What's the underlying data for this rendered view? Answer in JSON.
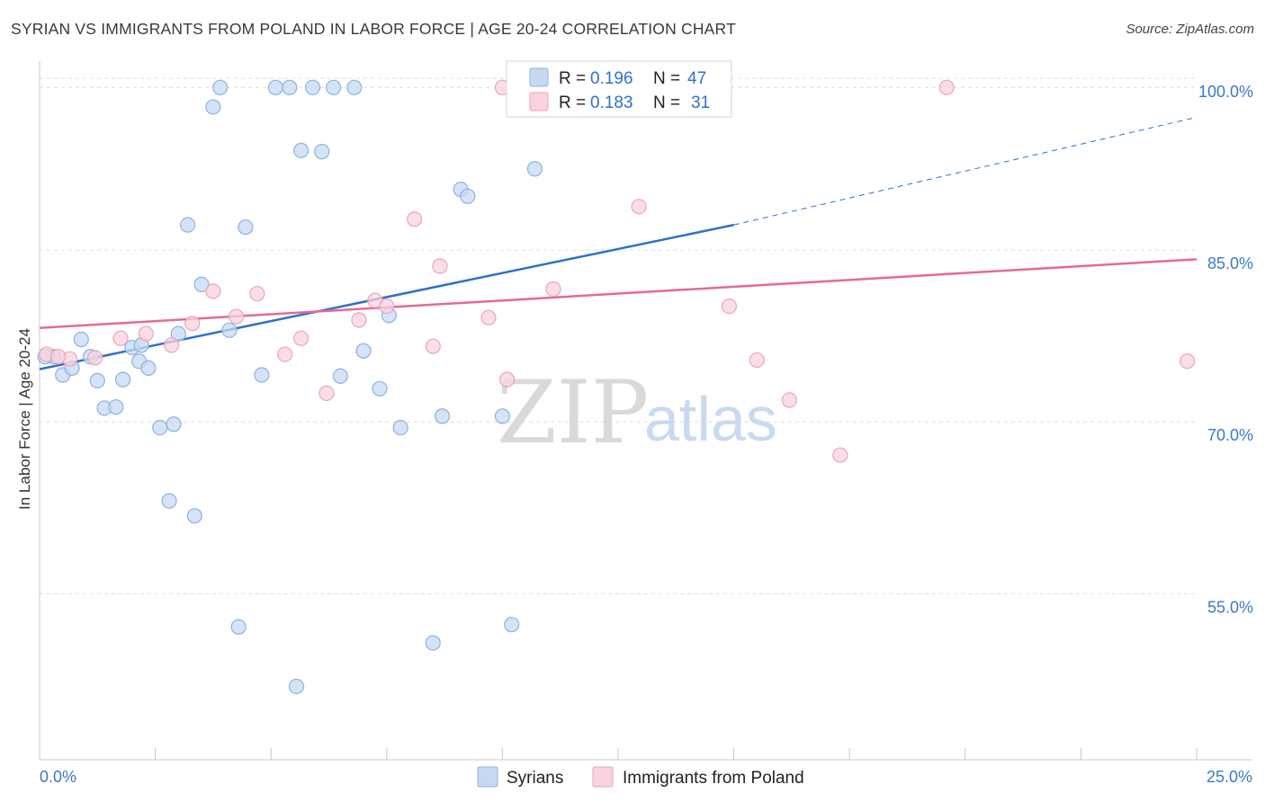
{
  "title": "SYRIAN VS IMMIGRANTS FROM POLAND IN LABOR FORCE | AGE 20-24 CORRELATION CHART",
  "source": "Source: ZipAtlas.com",
  "watermark": {
    "zip": "ZIP",
    "atlas": "atlas"
  },
  "colors": {
    "blue_fill": "#c5d9f2",
    "blue_stroke": "#8fb2e0",
    "blue_line": "#2f6fcd",
    "pink_fill": "#f8d3df",
    "pink_stroke": "#eca3bb",
    "pink_line": "#e56a93",
    "tick_color": "#3b78c6",
    "grid": "#dcdcdc"
  },
  "legend": {
    "rows": [
      {
        "r_label": "R = ",
        "r_value": "0.196",
        "n_label": "N = ",
        "n_value": "47"
      },
      {
        "r_label": "R = ",
        "r_value": "0.183",
        "n_label": "N = ",
        "n_value": "31"
      }
    ]
  },
  "chart_data": {
    "type": "scatter",
    "title": "SYRIAN VS IMMIGRANTS FROM POLAND IN LABOR FORCE | AGE 20-24 CORRELATION CHART",
    "xlabel": "",
    "ylabel": "In Labor Force | Age 20-24",
    "xlim": [
      0,
      25
    ],
    "ylim": [
      40.5,
      101.5
    ],
    "x_tick_labels": [
      "0.0%",
      "25.0%"
    ],
    "y_ticks": [
      55,
      70,
      85,
      100
    ],
    "y_tick_labels": [
      "55.0%",
      "70.0%",
      "85.0%",
      "100.0%"
    ],
    "grid": true,
    "legend_position": "top-center",
    "series": [
      {
        "name": "Syrians",
        "color": "#c5d9f2",
        "points": [
          [
            0.3,
            75.7
          ],
          [
            0.5,
            74.1
          ],
          [
            0.7,
            74.7
          ],
          [
            0.9,
            77.2
          ],
          [
            1.1,
            75.7
          ],
          [
            1.25,
            73.6
          ],
          [
            1.4,
            71.2
          ],
          [
            1.65,
            71.3
          ],
          [
            1.8,
            73.7
          ],
          [
            2.0,
            76.5
          ],
          [
            2.15,
            75.3
          ],
          [
            2.35,
            74.7
          ],
          [
            2.6,
            69.5
          ],
          [
            2.9,
            69.8
          ],
          [
            2.8,
            63.1
          ],
          [
            3.2,
            87.2
          ],
          [
            3.35,
            61.8
          ],
          [
            3.5,
            82.0
          ],
          [
            3.75,
            97.5
          ],
          [
            3.9,
            99.2
          ],
          [
            4.1,
            78.0
          ],
          [
            4.3,
            52.1
          ],
          [
            4.45,
            87.0
          ],
          [
            4.8,
            74.1
          ],
          [
            5.1,
            99.2
          ],
          [
            5.4,
            99.2
          ],
          [
            5.55,
            46.9
          ],
          [
            5.65,
            93.7
          ],
          [
            5.9,
            99.2
          ],
          [
            6.1,
            93.6
          ],
          [
            6.35,
            99.2
          ],
          [
            6.5,
            74.0
          ],
          [
            6.8,
            99.2
          ],
          [
            7.0,
            76.2
          ],
          [
            7.35,
            72.9
          ],
          [
            7.55,
            79.3
          ],
          [
            7.8,
            69.5
          ],
          [
            8.5,
            50.7
          ],
          [
            8.7,
            70.5
          ],
          [
            9.1,
            90.3
          ],
          [
            9.25,
            89.7
          ],
          [
            10.0,
            70.5
          ],
          [
            10.2,
            52.3
          ],
          [
            10.7,
            92.1
          ],
          [
            0.12,
            75.7
          ],
          [
            2.2,
            76.7
          ],
          [
            3.0,
            77.7
          ]
        ]
      },
      {
        "name": "Immigrants from Poland",
        "color": "#f8d3df",
        "points": [
          [
            0.15,
            75.9
          ],
          [
            0.65,
            75.5
          ],
          [
            1.2,
            75.6
          ],
          [
            1.75,
            77.3
          ],
          [
            2.3,
            77.7
          ],
          [
            2.85,
            76.7
          ],
          [
            3.3,
            78.6
          ],
          [
            3.75,
            81.4
          ],
          [
            4.25,
            79.2
          ],
          [
            4.7,
            81.2
          ],
          [
            5.3,
            75.9
          ],
          [
            5.65,
            77.3
          ],
          [
            6.2,
            72.5
          ],
          [
            6.9,
            78.9
          ],
          [
            7.25,
            80.6
          ],
          [
            7.5,
            80.1
          ],
          [
            8.1,
            87.7
          ],
          [
            8.5,
            76.6
          ],
          [
            8.65,
            83.6
          ],
          [
            9.7,
            79.1
          ],
          [
            10.0,
            99.2
          ],
          [
            10.1,
            73.7
          ],
          [
            11.1,
            81.6
          ],
          [
            12.95,
            88.8
          ],
          [
            14.9,
            80.1
          ],
          [
            15.5,
            75.4
          ],
          [
            16.2,
            71.9
          ],
          [
            17.3,
            67.1
          ],
          [
            19.6,
            99.2
          ],
          [
            24.8,
            75.3
          ],
          [
            0.4,
            75.7
          ]
        ]
      }
    ],
    "trend_lines": [
      {
        "series": "Syrians",
        "x0": 0,
        "y0": 74.6,
        "x1": 15.0,
        "y1": 87.2,
        "dashed_to_x": 25,
        "dashed_to_y": 96.6
      },
      {
        "series": "Immigrants from Poland",
        "x0": 0,
        "y0": 78.2,
        "x1": 25,
        "y1": 84.2
      }
    ]
  }
}
